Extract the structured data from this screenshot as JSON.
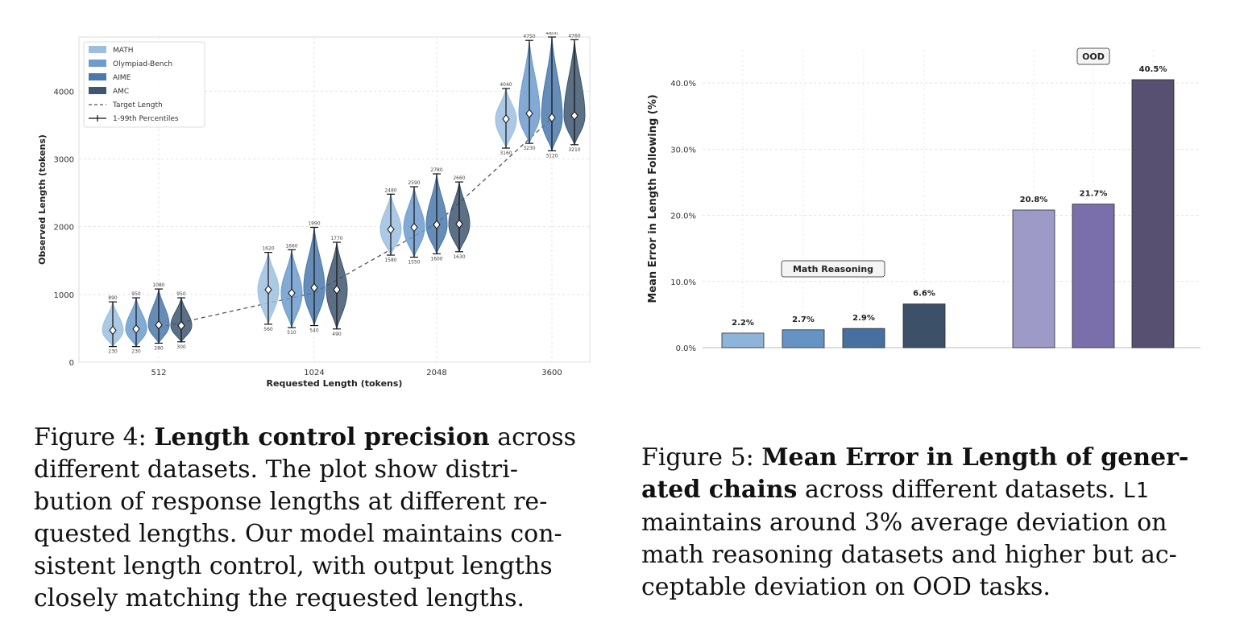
{
  "figure4": {
    "caption": {
      "label": "Figure 4:",
      "bold": "Length control precision",
      "line1_tail": "across",
      "lines": [
        "different datasets.  The plot show distri-",
        "bution of response lengths at different re-",
        "quested lengths. Our model maintains con-",
        "sistent length control, with output lengths",
        "closely matching the requested lengths."
      ]
    },
    "chart_data": {
      "type": "violin",
      "xlabel": "Requested Length (tokens)",
      "ylabel": "Observed Length (tokens)",
      "ylim": [
        0,
        4800
      ],
      "yticks": [
        0,
        1000,
        2000,
        3000,
        4000
      ],
      "categories": [
        "512",
        "1024",
        "2048",
        "3600"
      ],
      "grid": true,
      "legend_position": "top-left",
      "legend": [
        "MATH",
        "Olympiad-Bench",
        "AIME",
        "AMC",
        "Target Length",
        "1-99th Percentiles"
      ],
      "series": [
        {
          "name": "MATH",
          "color": "#9cbfe0",
          "medians": [
            470,
            1070,
            1960,
            3590
          ],
          "p1": [
            230,
            560,
            1580,
            3160
          ],
          "p99": [
            890,
            1620,
            2480,
            4040
          ],
          "p1_labels": [
            "230",
            "560",
            "1580",
            "3160"
          ],
          "p99_labels": [
            "890",
            "1620",
            "2480",
            "4040"
          ]
        },
        {
          "name": "Olympiad-Bench",
          "color": "#6d9bcd",
          "medians": [
            490,
            1020,
            1990,
            3670
          ],
          "p1": [
            230,
            510,
            1550,
            3230
          ],
          "p99": [
            950,
            1660,
            2590,
            4750
          ],
          "p1_labels": [
            "230",
            "510",
            "1550",
            "3230"
          ],
          "p99_labels": [
            "950",
            "1660",
            "2590",
            "4750"
          ]
        },
        {
          "name": "AIME",
          "color": "#4a79aa",
          "medians": [
            550,
            1100,
            2030,
            3610
          ],
          "p1": [
            280,
            540,
            1600,
            3120
          ],
          "p99": [
            1080,
            1990,
            2780,
            4800
          ],
          "p1_labels": [
            "280",
            "540",
            "1600",
            "3120"
          ],
          "p99_labels": [
            "1080",
            "1990",
            "2780",
            "4800"
          ]
        },
        {
          "name": "AMC",
          "color": "#3e5670",
          "medians": [
            540,
            1070,
            2040,
            3640
          ],
          "p1": [
            300,
            490,
            1630,
            3210
          ],
          "p99": [
            950,
            1770,
            2660,
            4760
          ],
          "p1_labels": [
            "300",
            "490",
            "1630",
            "3210"
          ],
          "p99_labels": [
            "950",
            "1770",
            "2660",
            "4760"
          ]
        }
      ],
      "target_length": {
        "name": "Target Length",
        "x": [
          "512",
          "1024",
          "2048",
          "3600"
        ],
        "y": [
          512,
          1024,
          2048,
          3600
        ]
      }
    }
  },
  "figure5": {
    "caption": {
      "label": "Figure 5:",
      "bold1": "Mean Error in Length of gener-",
      "bold2": "ated chains",
      "line2_tail": "across different datasets.",
      "mono": "L1",
      "lines": [
        "maintains around 3% average deviation on",
        "math reasoning datasets and higher but ac-",
        "ceptable deviation on OOD tasks."
      ]
    },
    "chart_data": {
      "type": "bar",
      "ylabel": "Mean Error in Length Following (%)",
      "ylim": [
        0,
        45
      ],
      "yticks": [
        0,
        10,
        20,
        30,
        40
      ],
      "ytick_labels": [
        "0.0%",
        "10.0%",
        "20.0%",
        "30.0%",
        "40.0%"
      ],
      "grid": true,
      "groups": [
        {
          "label": "Math Reasoning",
          "bars": [
            {
              "value": 2.2,
              "label": "2.2%",
              "color": "#8fb4d9"
            },
            {
              "value": 2.7,
              "label": "2.7%",
              "color": "#6593c4"
            },
            {
              "value": 2.9,
              "label": "2.9%",
              "color": "#46709f"
            },
            {
              "value": 6.6,
              "label": "6.6%",
              "color": "#3c5068"
            }
          ]
        },
        {
          "label": "OOD",
          "bars": [
            {
              "value": 20.8,
              "label": "20.8%",
              "color": "#9e9ac8"
            },
            {
              "value": 21.7,
              "label": "21.7%",
              "color": "#7a6eab"
            },
            {
              "value": 40.5,
              "label": "40.5%",
              "color": "#575070"
            }
          ]
        }
      ]
    }
  }
}
